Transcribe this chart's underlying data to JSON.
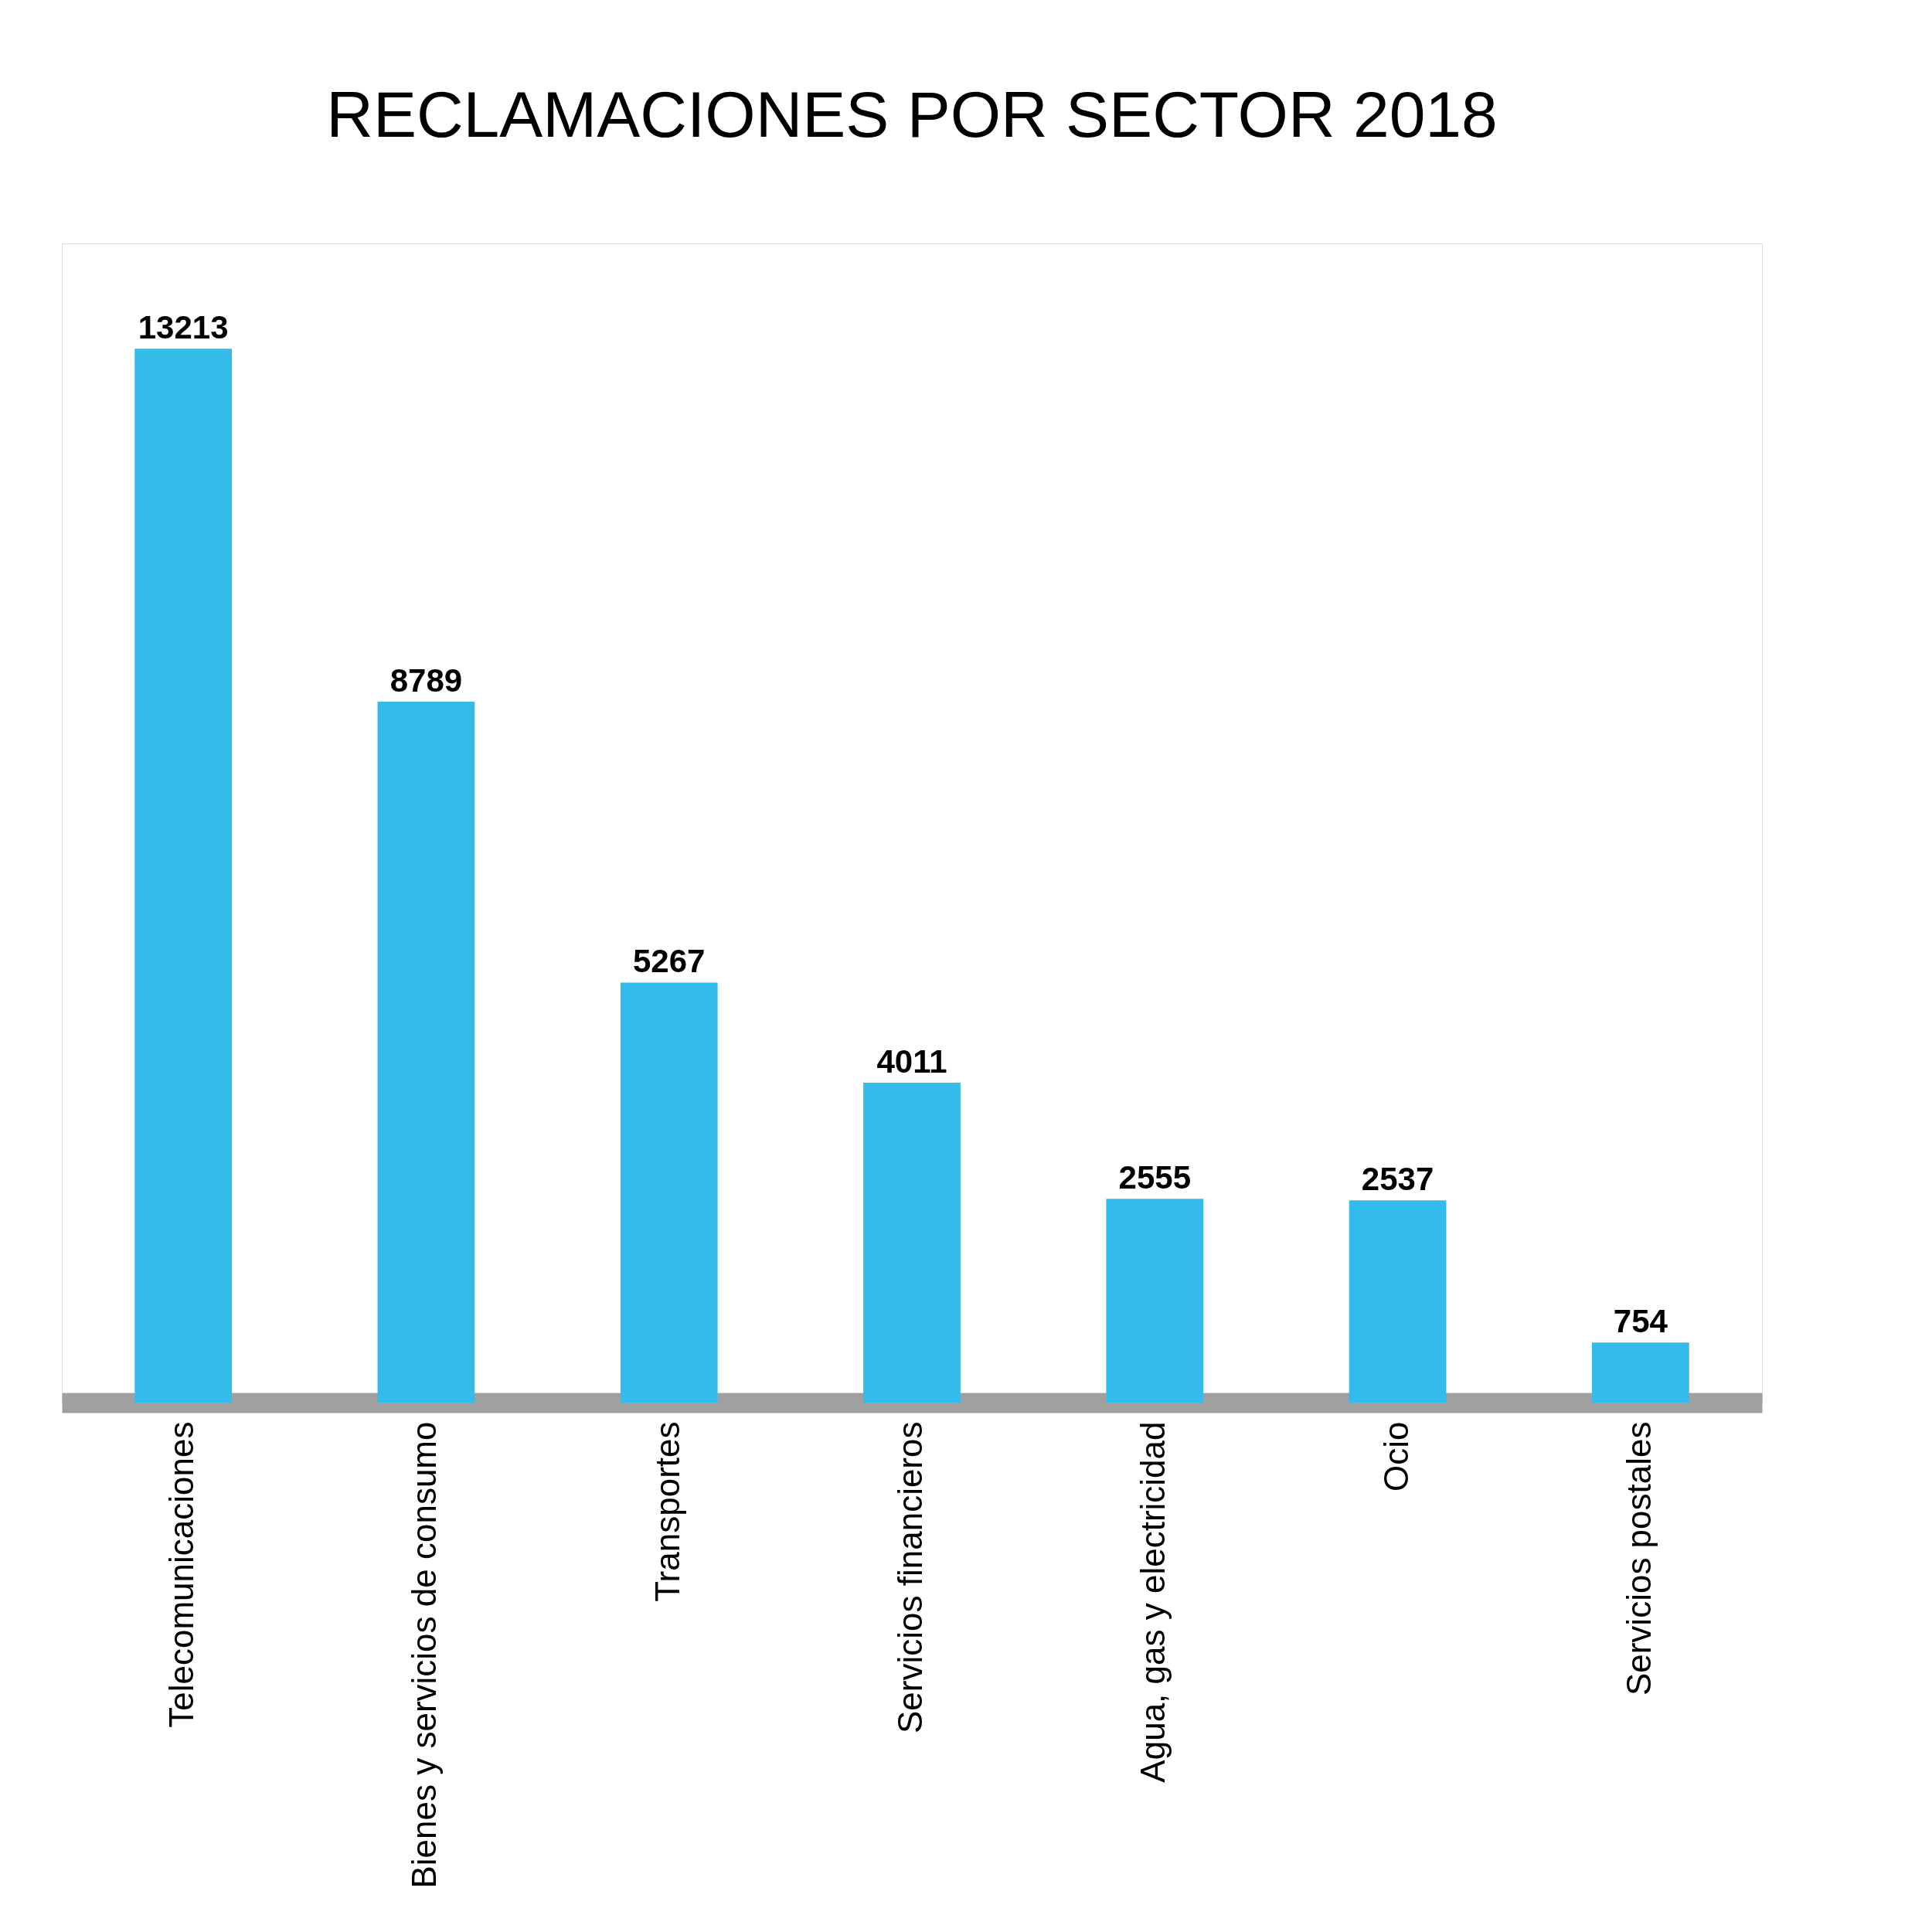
{
  "chart_data": {
    "type": "bar",
    "title": "RECLAMACIONES POR SECTOR 2018",
    "categories": [
      "Telecomunicaciones",
      "Bienes y servicios de consumo",
      "Transportes",
      "Servicios financieros",
      "Agua, gas y electricidad",
      "Ocio",
      "Servicios postales"
    ],
    "values": [
      13213,
      8789,
      5267,
      4011,
      2555,
      2537,
      754
    ],
    "color": "#33bbec",
    "data_labels": true,
    "grid": false
  }
}
